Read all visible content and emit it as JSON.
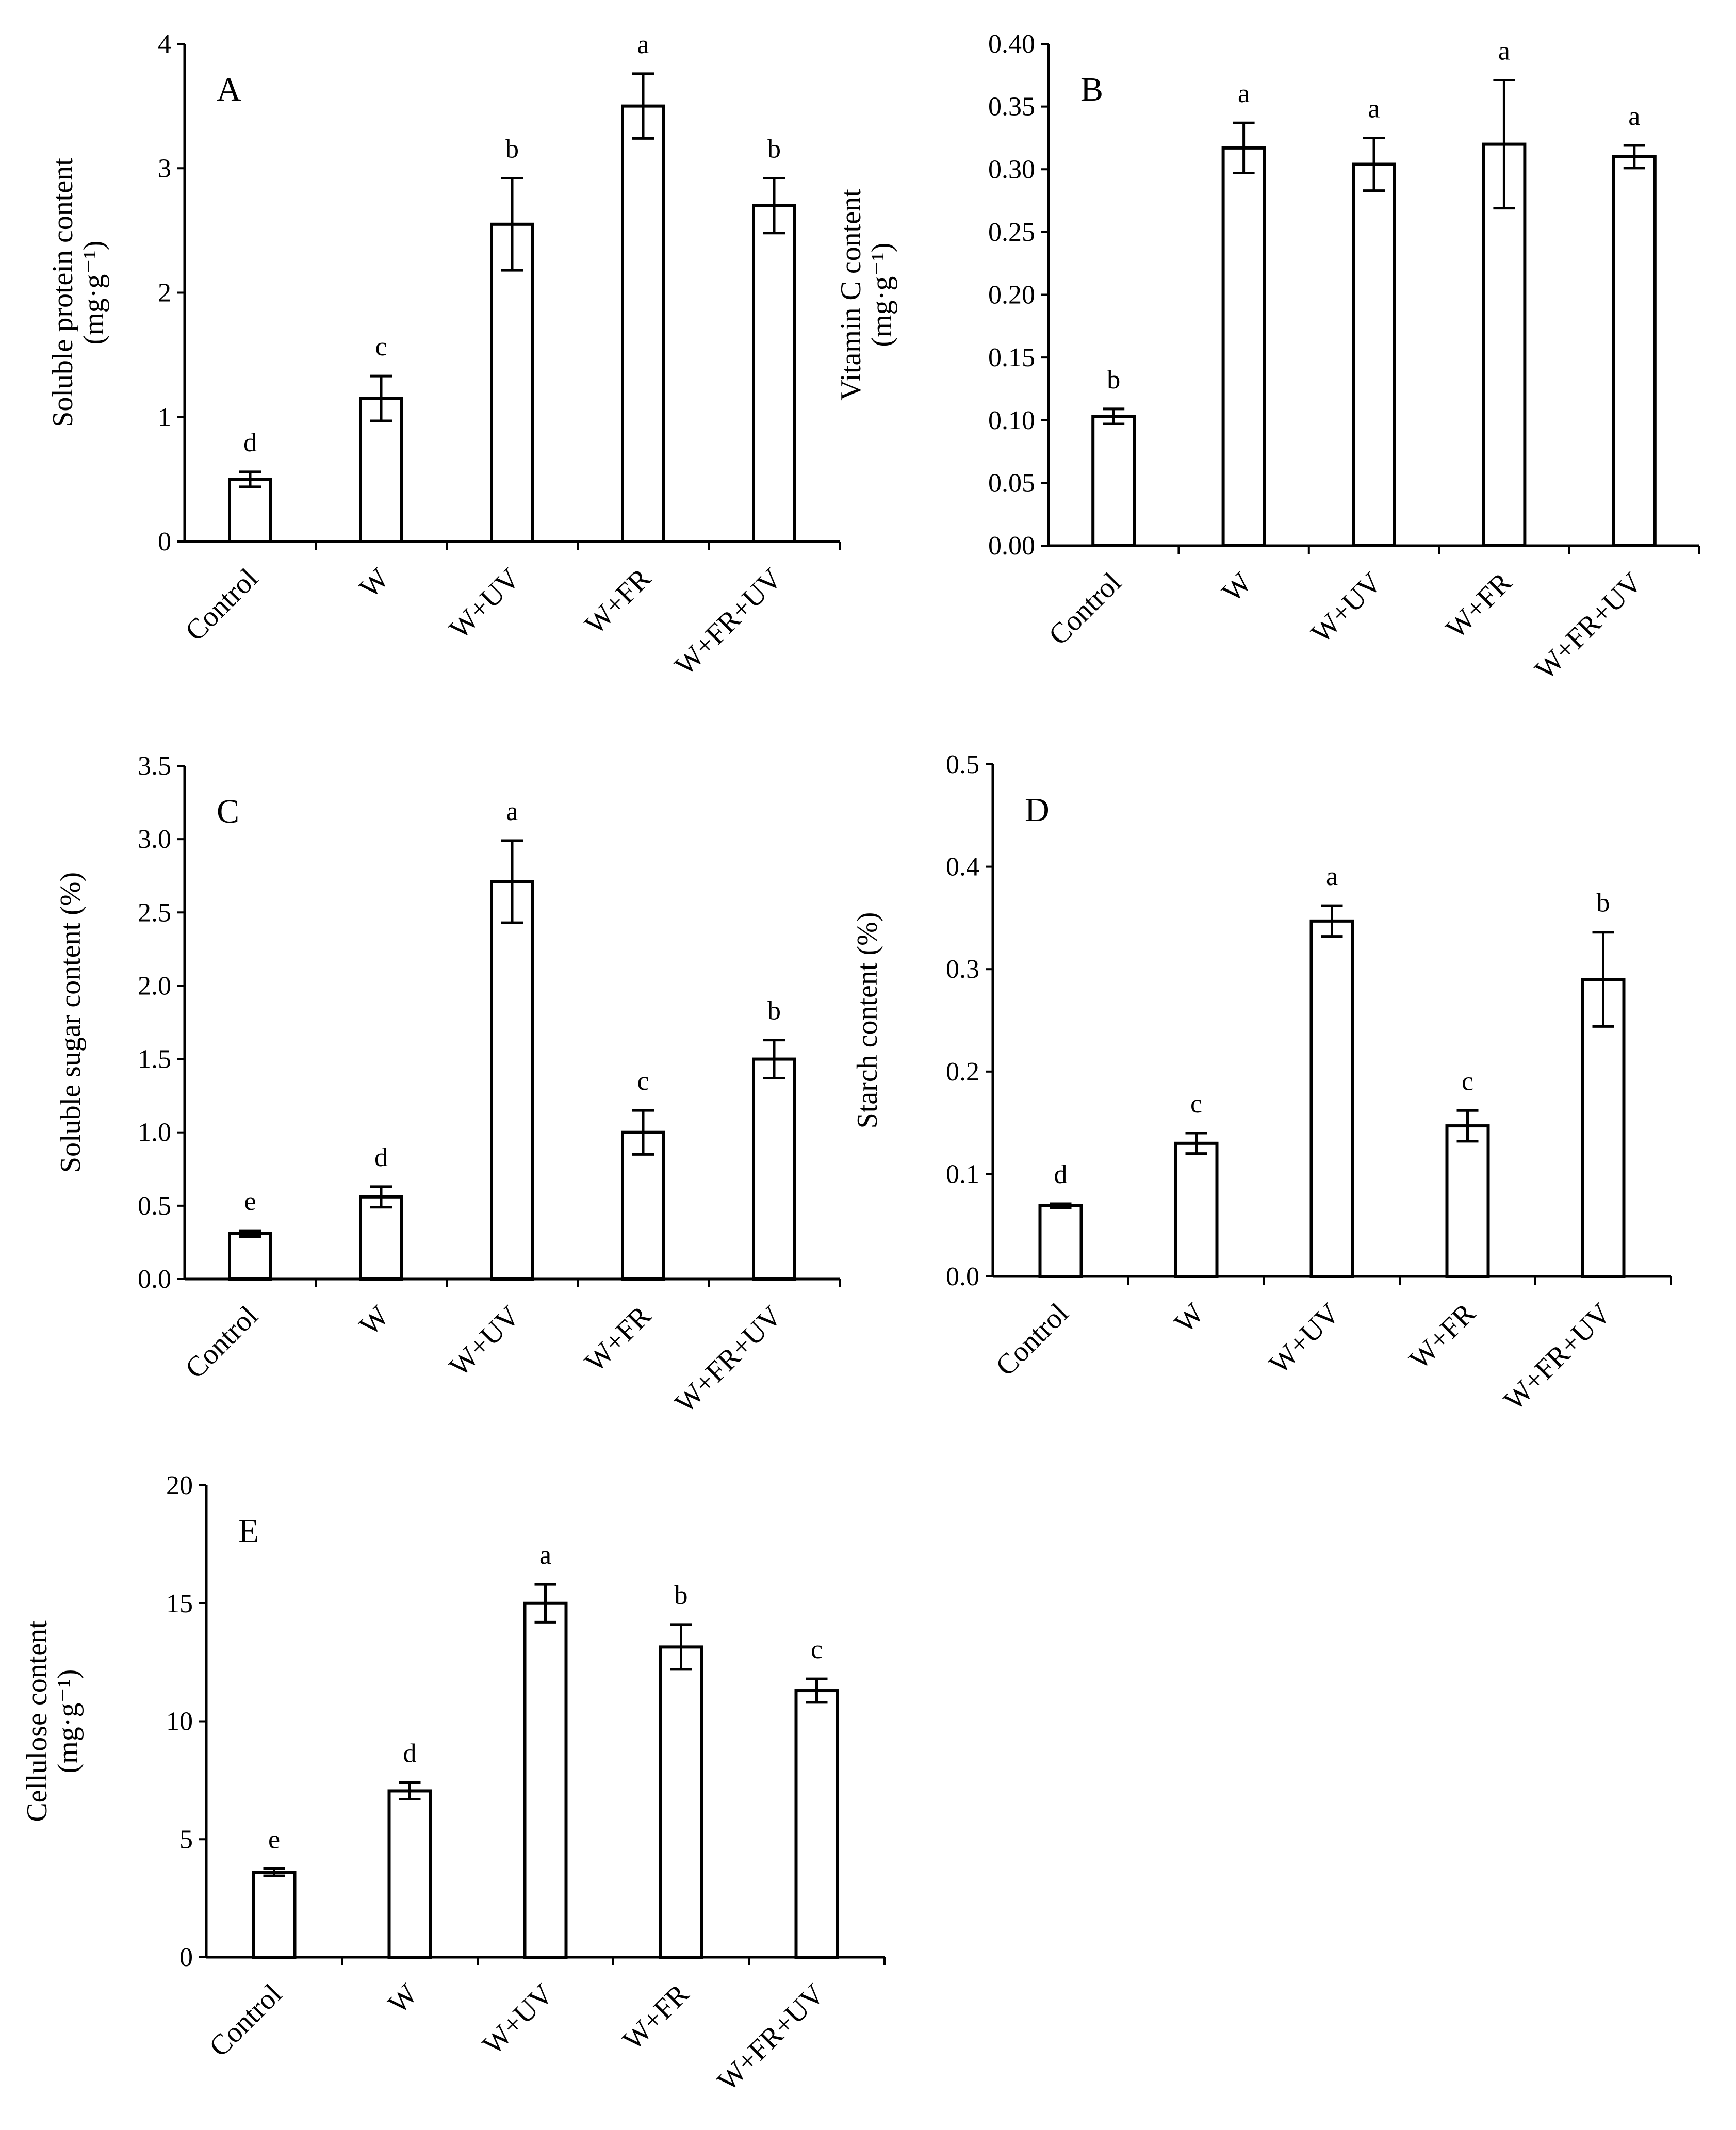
{
  "chart_data": [
    {
      "type": "bar",
      "panel_label": "A",
      "title": "",
      "categories": [
        "Control",
        "W",
        "W+UV",
        "W+FR",
        "W+FR+UV"
      ],
      "values": [
        0.5,
        1.15,
        2.55,
        3.5,
        2.7
      ],
      "errors": [
        0.06,
        0.18,
        0.37,
        0.26,
        0.22
      ],
      "letters": [
        "d",
        "c",
        "b",
        "a",
        "b"
      ],
      "ylabel_line1": "Soluble protein content",
      "ylabel_line2": "(mg·g⁻¹)",
      "ylabel": "",
      "xlabel": "",
      "ylim": [
        0,
        4
      ],
      "yticks": [
        "0",
        "1",
        "2",
        "3",
        "4"
      ],
      "grid": false,
      "legend": "none"
    },
    {
      "type": "bar",
      "panel_label": "B",
      "title": "",
      "categories": [
        "Control",
        "W",
        "W+UV",
        "W+FR",
        "W+FR+UV"
      ],
      "values": [
        0.103,
        0.317,
        0.304,
        0.32,
        0.31
      ],
      "errors": [
        0.006,
        0.02,
        0.021,
        0.051,
        0.009
      ],
      "letters": [
        "b",
        "a",
        "a",
        "a",
        "a"
      ],
      "ylabel_line1": "Vitamin C content",
      "ylabel_line2": "(mg·g⁻¹)",
      "ylabel": "",
      "xlabel": "",
      "ylim": [
        0,
        0.4
      ],
      "yticks": [
        "0.00",
        "0.05",
        "0.10",
        "0.15",
        "0.20",
        "0.25",
        "0.30",
        "0.35",
        "0.40"
      ],
      "grid": false,
      "legend": "none"
    },
    {
      "type": "bar",
      "panel_label": "C",
      "title": "",
      "categories": [
        "Control",
        "W",
        "W+UV",
        "W+FR",
        "W+FR+UV"
      ],
      "values": [
        0.31,
        0.56,
        2.71,
        1.0,
        1.5
      ],
      "errors": [
        0.02,
        0.07,
        0.28,
        0.15,
        0.13
      ],
      "letters": [
        "e",
        "d",
        "a",
        "c",
        "b"
      ],
      "ylabel": "Soluble sugar content (%)",
      "xlabel": "",
      "ylim": [
        0,
        3.5
      ],
      "yticks": [
        "0.0",
        "0.5",
        "1.0",
        "1.5",
        "2.0",
        "2.5",
        "3.0",
        "3.5"
      ],
      "grid": false,
      "legend": "none"
    },
    {
      "type": "bar",
      "panel_label": "D",
      "title": "",
      "categories": [
        "Control",
        "W",
        "W+UV",
        "W+FR",
        "W+FR+UV"
      ],
      "values": [
        0.069,
        0.13,
        0.347,
        0.147,
        0.29
      ],
      "errors": [
        0.002,
        0.01,
        0.015,
        0.015,
        0.046
      ],
      "letters": [
        "d",
        "c",
        "a",
        "c",
        "b"
      ],
      "ylabel": "Starch content (%)",
      "xlabel": "",
      "ylim": [
        0,
        0.5
      ],
      "yticks": [
        "0.0",
        "0.1",
        "0.2",
        "0.3",
        "0.4",
        "0.5"
      ],
      "grid": false,
      "legend": "none"
    },
    {
      "type": "bar",
      "panel_label": "E",
      "title": "",
      "categories": [
        "Control",
        "W",
        "W+UV",
        "W+FR",
        "W+FR+UV"
      ],
      "values": [
        3.6,
        7.05,
        15.0,
        13.15,
        11.3
      ],
      "errors": [
        0.15,
        0.35,
        0.8,
        0.95,
        0.5
      ],
      "letters": [
        "e",
        "d",
        "a",
        "b",
        "c"
      ],
      "ylabel_line1": "Cellulose content",
      "ylabel_line2": "(mg·g⁻¹)",
      "ylabel": "",
      "xlabel": "",
      "ylim": [
        0,
        20
      ],
      "yticks": [
        "0",
        "5",
        "10",
        "15",
        "20"
      ],
      "grid": false,
      "legend": "none"
    }
  ]
}
